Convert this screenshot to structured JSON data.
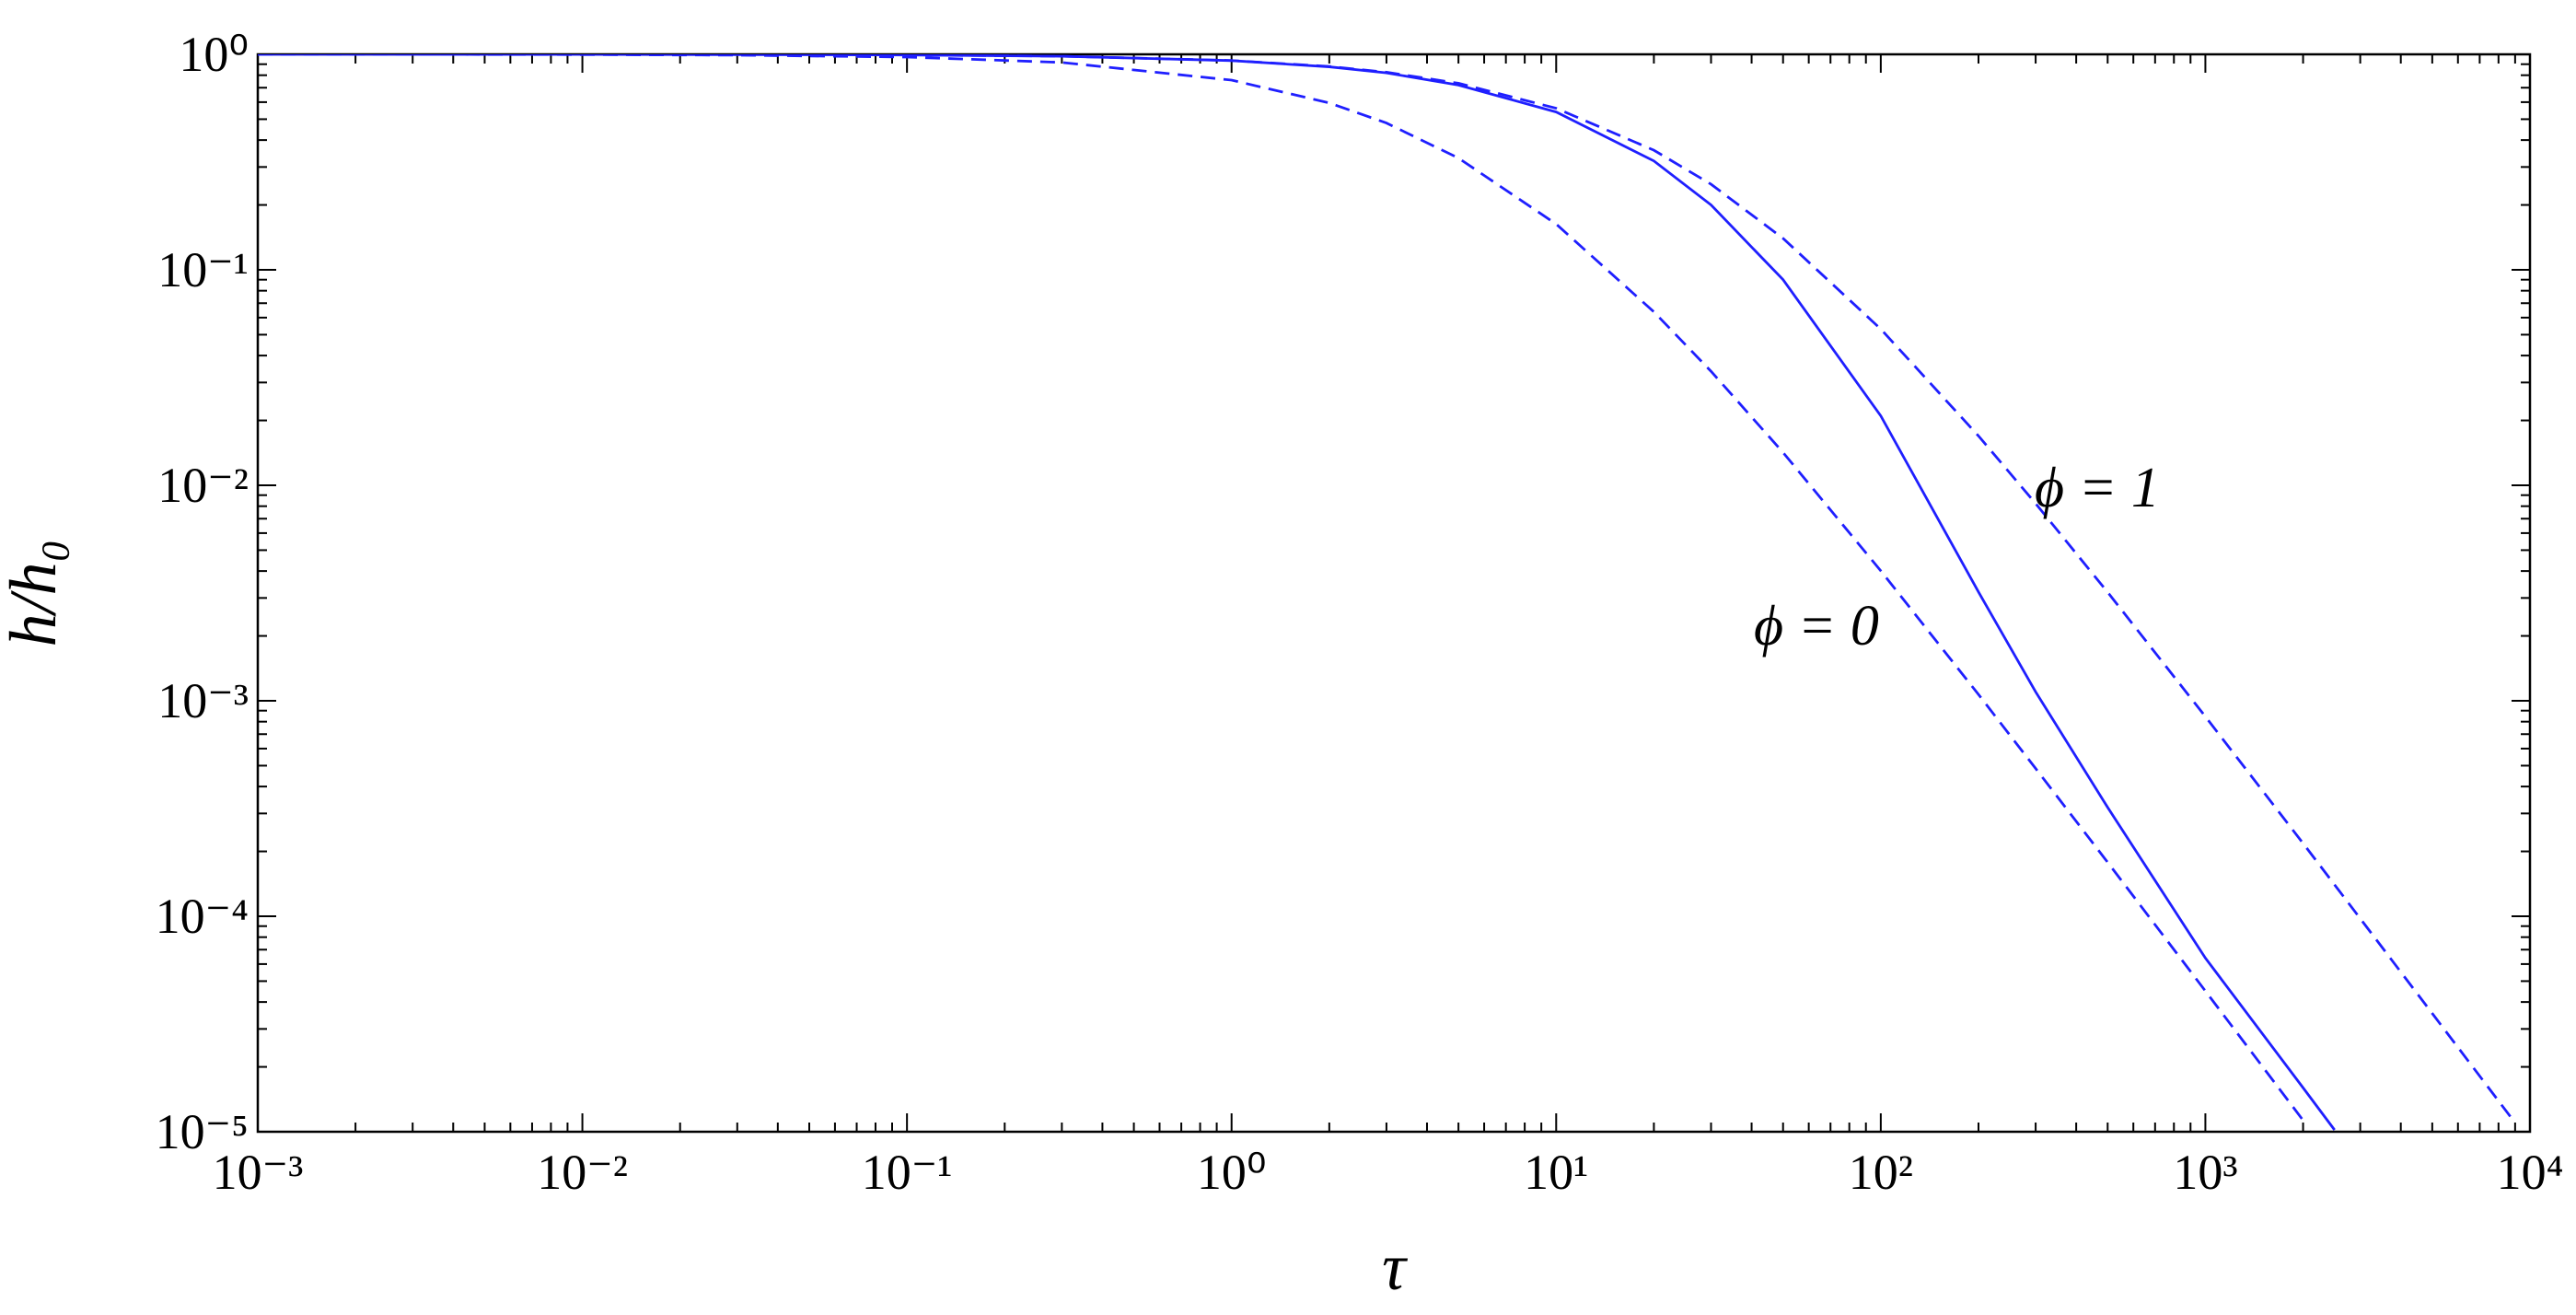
{
  "chart_data": {
    "type": "line",
    "xlabel": "τ",
    "ylabel": "h/h₀",
    "xscale": "log",
    "yscale": "log",
    "xlim": [
      0.001,
      10000
    ],
    "ylim": [
      1e-05,
      1
    ],
    "xticks": [
      {
        "value": 0.001,
        "label": "10⁻³"
      },
      {
        "value": 0.01,
        "label": "10⁻²"
      },
      {
        "value": 0.1,
        "label": "10⁻¹"
      },
      {
        "value": 1,
        "label": "10⁰"
      },
      {
        "value": 10,
        "label": "10¹"
      },
      {
        "value": 100,
        "label": "10²"
      },
      {
        "value": 1000,
        "label": "10³"
      },
      {
        "value": 10000,
        "label": "10⁴"
      }
    ],
    "yticks": [
      {
        "value": 1e-05,
        "label": "10⁻⁵"
      },
      {
        "value": 0.0001,
        "label": "10⁻⁴"
      },
      {
        "value": 0.001,
        "label": "10⁻³"
      },
      {
        "value": 0.01,
        "label": "10⁻²"
      },
      {
        "value": 0.1,
        "label": "10⁻¹"
      },
      {
        "value": 1,
        "label": "10⁰"
      }
    ],
    "minor_ticks": true,
    "grid": false,
    "series": [
      {
        "color": "#1f1fff",
        "linestyle": "solid",
        "x": [
          0.001,
          0.01,
          0.1,
          0.3,
          1,
          2,
          3,
          5,
          10,
          20,
          30,
          50,
          100,
          200,
          300,
          500,
          1000,
          2000,
          2500
        ],
        "values": [
          1.0,
          0.9993,
          0.993,
          0.98,
          0.935,
          0.875,
          0.82,
          0.72,
          0.54,
          0.32,
          0.2,
          0.09,
          0.021,
          0.0032,
          0.0011,
          0.00032,
          6.4e-05,
          1.6e-05,
          1.02e-05
        ]
      },
      {
        "name": "ϕ = 0",
        "color": "#1f1fff",
        "linestyle": "dashed",
        "x": [
          0.001,
          0.003,
          0.01,
          0.03,
          0.1,
          0.3,
          1,
          2,
          3,
          5,
          10,
          20,
          30,
          50,
          100,
          200,
          300,
          500,
          1000,
          2000
        ],
        "values": [
          0.9997,
          0.9991,
          0.997,
          0.991,
          0.971,
          0.917,
          0.759,
          0.595,
          0.48,
          0.33,
          0.163,
          0.0638,
          0.0338,
          0.0142,
          0.00401,
          0.00107,
          0.000485,
          0.000178,
          4.5e-05,
          1.13e-05
        ]
      },
      {
        "name": "ϕ = 1",
        "color": "#1f1fff",
        "linestyle": "dashed",
        "x": [
          0.001,
          0.01,
          0.1,
          0.3,
          1,
          2,
          3,
          5,
          10,
          20,
          30,
          50,
          100,
          200,
          300,
          500,
          1000,
          2000,
          3000,
          5000,
          8000,
          9000
        ],
        "values": [
          1.0,
          0.9993,
          0.9933,
          0.98,
          0.936,
          0.879,
          0.826,
          0.734,
          0.562,
          0.359,
          0.2495,
          0.14,
          0.0531,
          0.01695,
          0.00823,
          0.00319,
          0.000845,
          0.000218,
          9.76e-05,
          3.54e-05,
          1.39e-05,
          1.1e-05
        ]
      }
    ]
  }
}
